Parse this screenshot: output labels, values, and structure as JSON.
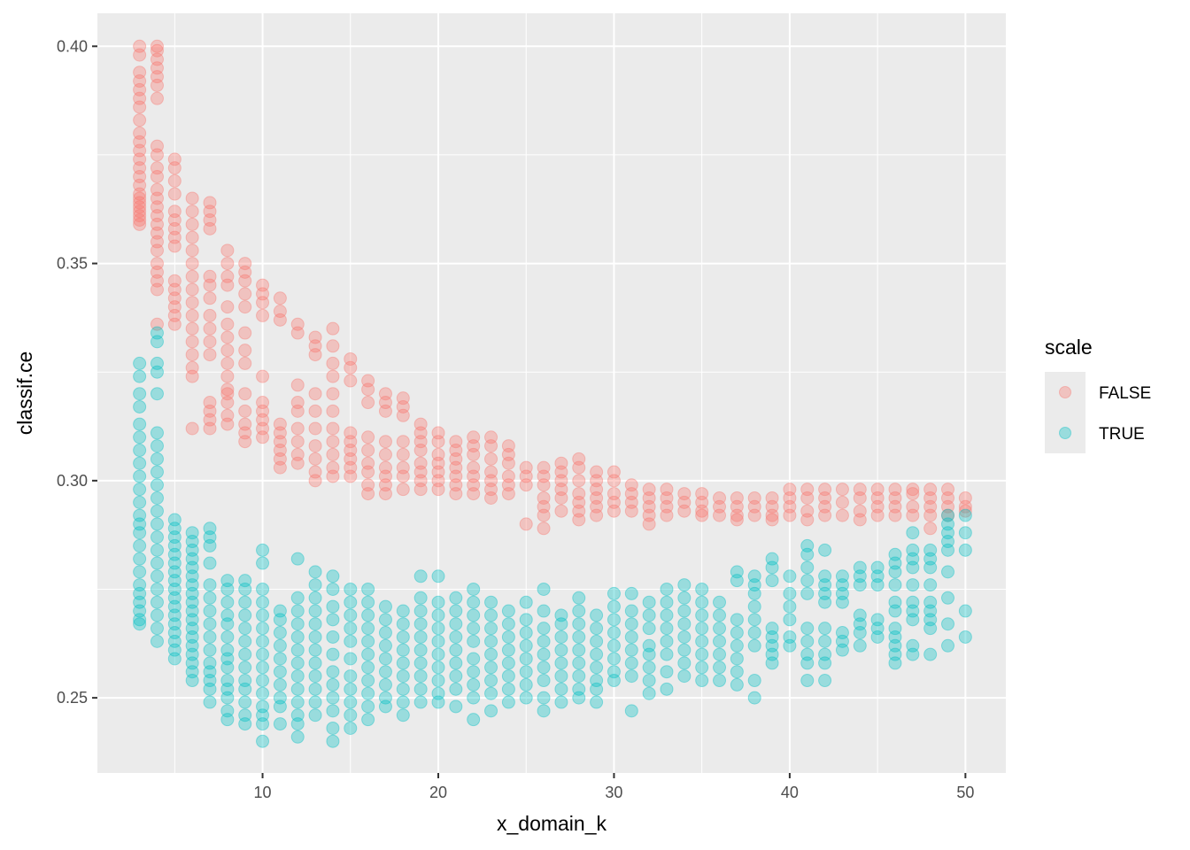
{
  "chart_data": {
    "type": "scatter",
    "title": "",
    "xlabel": "x_domain_k",
    "ylabel": "classif.ce",
    "xlim": [
      0.6,
      52.3
    ],
    "ylim": [
      0.2327,
      0.4076
    ],
    "x_ticks": [
      10,
      20,
      30,
      40,
      50
    ],
    "x_tick_labels": [
      "10",
      "20",
      "30",
      "40",
      "50"
    ],
    "y_ticks": [
      0.25,
      0.3,
      0.35,
      0.4
    ],
    "y_tick_labels": [
      "0.25",
      "0.30",
      "0.35",
      "0.40"
    ],
    "grid": true,
    "point_alpha": 0.35,
    "legend": {
      "title": "scale",
      "position": "right"
    },
    "series": [
      {
        "name": "FALSE",
        "color": "#F8766D",
        "points_by_k": {
          "3": [
            0.4,
            0.398,
            0.394,
            0.392,
            0.39,
            0.388,
            0.386,
            0.383,
            0.38,
            0.378,
            0.376,
            0.374,
            0.372,
            0.37,
            0.368,
            0.366,
            0.365,
            0.364,
            0.363,
            0.362,
            0.361,
            0.36,
            0.359
          ],
          "4": [
            0.4,
            0.399,
            0.397,
            0.395,
            0.393,
            0.391,
            0.388,
            0.377,
            0.375,
            0.372,
            0.37,
            0.367,
            0.365,
            0.363,
            0.361,
            0.359,
            0.357,
            0.355,
            0.353,
            0.35,
            0.348,
            0.346,
            0.344,
            0.336
          ],
          "5": [
            0.374,
            0.372,
            0.369,
            0.366,
            0.362,
            0.36,
            0.358,
            0.356,
            0.354,
            0.346,
            0.344,
            0.342,
            0.34,
            0.338,
            0.336
          ],
          "6": [
            0.365,
            0.362,
            0.359,
            0.356,
            0.353,
            0.35,
            0.347,
            0.344,
            0.341,
            0.338,
            0.335,
            0.332,
            0.329,
            0.326,
            0.324,
            0.312
          ],
          "7": [
            0.364,
            0.362,
            0.36,
            0.358,
            0.347,
            0.345,
            0.342,
            0.338,
            0.335,
            0.332,
            0.329,
            0.318,
            0.316,
            0.314,
            0.312
          ],
          "8": [
            0.353,
            0.35,
            0.347,
            0.345,
            0.34,
            0.336,
            0.333,
            0.33,
            0.327,
            0.324,
            0.321,
            0.318,
            0.315,
            0.313,
            0.32
          ],
          "9": [
            0.35,
            0.348,
            0.346,
            0.343,
            0.34,
            0.334,
            0.33,
            0.327,
            0.32,
            0.316,
            0.313,
            0.311,
            0.309
          ],
          "10": [
            0.345,
            0.343,
            0.341,
            0.338,
            0.324,
            0.318,
            0.316,
            0.314,
            0.312,
            0.31
          ],
          "11": [
            0.342,
            0.339,
            0.337,
            0.313,
            0.311,
            0.309,
            0.307,
            0.305,
            0.303
          ],
          "12": [
            0.336,
            0.334,
            0.322,
            0.318,
            0.316,
            0.312,
            0.309,
            0.306,
            0.304
          ],
          "13": [
            0.333,
            0.331,
            0.329,
            0.32,
            0.316,
            0.312,
            0.308,
            0.305,
            0.302,
            0.3
          ],
          "14": [
            0.335,
            0.331,
            0.327,
            0.324,
            0.32,
            0.316,
            0.312,
            0.309,
            0.306,
            0.303,
            0.301
          ],
          "15": [
            0.328,
            0.326,
            0.323,
            0.311,
            0.309,
            0.307,
            0.305,
            0.303,
            0.301
          ],
          "16": [
            0.323,
            0.321,
            0.318,
            0.31,
            0.307,
            0.304,
            0.302,
            0.299,
            0.297
          ],
          "17": [
            0.32,
            0.318,
            0.316,
            0.309,
            0.306,
            0.303,
            0.301,
            0.299,
            0.297
          ],
          "18": [
            0.319,
            0.317,
            0.315,
            0.309,
            0.306,
            0.303,
            0.301,
            0.298
          ],
          "19": [
            0.313,
            0.311,
            0.309,
            0.307,
            0.304,
            0.302,
            0.3,
            0.298
          ],
          "20": [
            0.311,
            0.309,
            0.306,
            0.304,
            0.302,
            0.3,
            0.298
          ],
          "21": [
            0.309,
            0.307,
            0.305,
            0.303,
            0.301,
            0.299,
            0.297
          ],
          "22": [
            0.31,
            0.308,
            0.306,
            0.303,
            0.301,
            0.299,
            0.297
          ],
          "23": [
            0.31,
            0.308,
            0.305,
            0.302,
            0.3,
            0.298,
            0.296
          ],
          "24": [
            0.308,
            0.306,
            0.304,
            0.301,
            0.299,
            0.297
          ],
          "25": [
            0.303,
            0.301,
            0.299,
            0.29
          ],
          "26": [
            0.303,
            0.301,
            0.299,
            0.296,
            0.294,
            0.292,
            0.289
          ],
          "27": [
            0.304,
            0.302,
            0.3,
            0.298,
            0.296,
            0.293
          ],
          "28": [
            0.305,
            0.303,
            0.3,
            0.297,
            0.295,
            0.293,
            0.291
          ],
          "29": [
            0.302,
            0.3,
            0.298,
            0.296,
            0.294,
            0.292
          ],
          "30": [
            0.302,
            0.3,
            0.297,
            0.295,
            0.293
          ],
          "31": [
            0.299,
            0.297,
            0.295,
            0.293
          ],
          "32": [
            0.298,
            0.296,
            0.294,
            0.292,
            0.29
          ],
          "33": [
            0.298,
            0.296,
            0.294,
            0.292
          ],
          "34": [
            0.297,
            0.295,
            0.293
          ],
          "35": [
            0.297,
            0.295,
            0.293,
            0.292
          ],
          "36": [
            0.296,
            0.294,
            0.292
          ],
          "37": [
            0.296,
            0.294,
            0.292,
            0.291
          ],
          "38": [
            0.296,
            0.294,
            0.292
          ],
          "39": [
            0.296,
            0.294,
            0.292,
            0.291
          ],
          "40": [
            0.298,
            0.296,
            0.294,
            0.292
          ],
          "41": [
            0.298,
            0.296,
            0.293,
            0.291
          ],
          "42": [
            0.298,
            0.296,
            0.294,
            0.292
          ],
          "43": [
            0.298,
            0.295,
            0.292
          ],
          "44": [
            0.298,
            0.296,
            0.293,
            0.291
          ],
          "45": [
            0.298,
            0.296,
            0.294,
            0.292
          ],
          "46": [
            0.298,
            0.296,
            0.294,
            0.292
          ],
          "47": [
            0.298,
            0.297,
            0.294,
            0.292
          ],
          "48": [
            0.298,
            0.296,
            0.294,
            0.292,
            0.289
          ],
          "49": [
            0.298,
            0.296,
            0.294,
            0.292
          ],
          "50": [
            0.296,
            0.294,
            0.293
          ]
        }
      },
      {
        "name": "TRUE",
        "color": "#00BFC4",
        "points_by_k": {
          "3": [
            0.327,
            0.324,
            0.32,
            0.317,
            0.313,
            0.31,
            0.307,
            0.304,
            0.301,
            0.298,
            0.295,
            0.292,
            0.29,
            0.288,
            0.285,
            0.282,
            0.279,
            0.276,
            0.274,
            0.272,
            0.27,
            0.268,
            0.267
          ],
          "4": [
            0.334,
            0.332,
            0.327,
            0.325,
            0.32,
            0.311,
            0.308,
            0.305,
            0.302,
            0.299,
            0.296,
            0.293,
            0.29,
            0.287,
            0.284,
            0.281,
            0.278,
            0.275,
            0.272,
            0.269,
            0.266,
            0.263
          ],
          "5": [
            0.291,
            0.289,
            0.287,
            0.285,
            0.283,
            0.281,
            0.279,
            0.277,
            0.275,
            0.273,
            0.271,
            0.269,
            0.267,
            0.265,
            0.263,
            0.261,
            0.259
          ],
          "6": [
            0.288,
            0.286,
            0.284,
            0.282,
            0.28,
            0.278,
            0.276,
            0.274,
            0.272,
            0.27,
            0.268,
            0.266,
            0.264,
            0.262,
            0.26,
            0.258,
            0.256,
            0.254
          ],
          "7": [
            0.289,
            0.287,
            0.285,
            0.281,
            0.276,
            0.273,
            0.27,
            0.267,
            0.264,
            0.261,
            0.258,
            0.256,
            0.254,
            0.252,
            0.249
          ],
          "8": [
            0.277,
            0.275,
            0.272,
            0.269,
            0.267,
            0.264,
            0.261,
            0.259,
            0.257,
            0.254,
            0.252,
            0.25,
            0.247,
            0.245
          ],
          "9": [
            0.277,
            0.275,
            0.272,
            0.269,
            0.266,
            0.263,
            0.26,
            0.257,
            0.254,
            0.252,
            0.249,
            0.246,
            0.244
          ],
          "10": [
            0.284,
            0.281,
            0.275,
            0.272,
            0.269,
            0.266,
            0.263,
            0.26,
            0.257,
            0.254,
            0.251,
            0.248,
            0.246,
            0.244,
            0.24
          ],
          "11": [
            0.27,
            0.268,
            0.265,
            0.262,
            0.259,
            0.256,
            0.253,
            0.25,
            0.248,
            0.244
          ],
          "12": [
            0.282,
            0.273,
            0.27,
            0.267,
            0.264,
            0.261,
            0.258,
            0.255,
            0.252,
            0.249,
            0.246,
            0.244,
            0.241
          ],
          "13": [
            0.279,
            0.276,
            0.273,
            0.27,
            0.267,
            0.264,
            0.261,
            0.258,
            0.255,
            0.252,
            0.249,
            0.246
          ],
          "14": [
            0.278,
            0.275,
            0.271,
            0.268,
            0.264,
            0.26,
            0.256,
            0.253,
            0.25,
            0.247,
            0.243,
            0.24
          ],
          "15": [
            0.275,
            0.272,
            0.269,
            0.266,
            0.263,
            0.259,
            0.255,
            0.252,
            0.249,
            0.246,
            0.243
          ],
          "16": [
            0.275,
            0.272,
            0.269,
            0.266,
            0.263,
            0.26,
            0.257,
            0.254,
            0.251,
            0.248,
            0.245
          ],
          "17": [
            0.271,
            0.268,
            0.265,
            0.262,
            0.259,
            0.256,
            0.253,
            0.25,
            0.248
          ],
          "18": [
            0.27,
            0.267,
            0.264,
            0.261,
            0.258,
            0.255,
            0.252,
            0.249,
            0.246
          ],
          "19": [
            0.278,
            0.273,
            0.27,
            0.267,
            0.264,
            0.261,
            0.258,
            0.255,
            0.252,
            0.249
          ],
          "20": [
            0.278,
            0.272,
            0.269,
            0.266,
            0.263,
            0.26,
            0.257,
            0.254,
            0.251,
            0.249
          ],
          "21": [
            0.273,
            0.27,
            0.267,
            0.264,
            0.261,
            0.258,
            0.255,
            0.252,
            0.248
          ],
          "22": [
            0.275,
            0.272,
            0.269,
            0.266,
            0.263,
            0.259,
            0.256,
            0.253,
            0.25,
            0.245
          ],
          "23": [
            0.272,
            0.269,
            0.266,
            0.263,
            0.26,
            0.257,
            0.254,
            0.251,
            0.247
          ],
          "24": [
            0.27,
            0.267,
            0.264,
            0.261,
            0.258,
            0.255,
            0.252,
            0.249
          ],
          "25": [
            0.272,
            0.268,
            0.265,
            0.262,
            0.259,
            0.256,
            0.253,
            0.25
          ],
          "26": [
            0.275,
            0.27,
            0.266,
            0.263,
            0.26,
            0.257,
            0.254,
            0.25,
            0.247
          ],
          "27": [
            0.269,
            0.267,
            0.264,
            0.261,
            0.258,
            0.255,
            0.252,
            0.249
          ],
          "28": [
            0.273,
            0.27,
            0.267,
            0.264,
            0.261,
            0.258,
            0.255,
            0.252,
            0.25
          ],
          "29": [
            0.269,
            0.266,
            0.263,
            0.26,
            0.257,
            0.254,
            0.252,
            0.249
          ],
          "30": [
            0.274,
            0.271,
            0.268,
            0.265,
            0.262,
            0.259,
            0.256,
            0.254
          ],
          "31": [
            0.274,
            0.27,
            0.267,
            0.264,
            0.261,
            0.258,
            0.255,
            0.247
          ],
          "32": [
            0.272,
            0.269,
            0.266,
            0.262,
            0.26,
            0.257,
            0.254,
            0.251
          ],
          "33": [
            0.275,
            0.272,
            0.269,
            0.266,
            0.263,
            0.26,
            0.256,
            0.252
          ],
          "34": [
            0.276,
            0.273,
            0.27,
            0.267,
            0.264,
            0.261,
            0.258,
            0.255
          ],
          "35": [
            0.275,
            0.272,
            0.269,
            0.266,
            0.263,
            0.26,
            0.257,
            0.254
          ],
          "36": [
            0.272,
            0.269,
            0.266,
            0.263,
            0.26,
            0.257,
            0.254
          ],
          "37": [
            0.279,
            0.277,
            0.268,
            0.265,
            0.262,
            0.259,
            0.256,
            0.253
          ],
          "38": [
            0.278,
            0.276,
            0.274,
            0.271,
            0.268,
            0.265,
            0.262,
            0.254,
            0.25
          ],
          "39": [
            0.282,
            0.28,
            0.277,
            0.266,
            0.264,
            0.262,
            0.26,
            0.258
          ],
          "40": [
            0.278,
            0.274,
            0.271,
            0.268,
            0.264,
            0.262
          ],
          "41": [
            0.285,
            0.283,
            0.28,
            0.277,
            0.274,
            0.266,
            0.263,
            0.26,
            0.258,
            0.254
          ],
          "42": [
            0.284,
            0.278,
            0.276,
            0.274,
            0.272,
            0.266,
            0.263,
            0.26,
            0.258,
            0.254
          ],
          "43": [
            0.278,
            0.276,
            0.274,
            0.272,
            0.265,
            0.263,
            0.261
          ],
          "44": [
            0.28,
            0.278,
            0.276,
            0.269,
            0.267,
            0.265,
            0.262
          ],
          "45": [
            0.28,
            0.278,
            0.276,
            0.268,
            0.266,
            0.264
          ],
          "46": [
            0.283,
            0.281,
            0.279,
            0.276,
            0.272,
            0.27,
            0.266,
            0.264,
            0.262,
            0.26,
            0.258
          ],
          "47": [
            0.288,
            0.284,
            0.282,
            0.28,
            0.276,
            0.272,
            0.27,
            0.268,
            0.262,
            0.26
          ],
          "48": [
            0.284,
            0.282,
            0.28,
            0.276,
            0.272,
            0.27,
            0.268,
            0.266,
            0.26
          ],
          "49": [
            0.292,
            0.29,
            0.288,
            0.286,
            0.284,
            0.279,
            0.273,
            0.267,
            0.262
          ],
          "50": [
            0.292,
            0.288,
            0.284,
            0.27,
            0.264
          ]
        }
      }
    ]
  }
}
